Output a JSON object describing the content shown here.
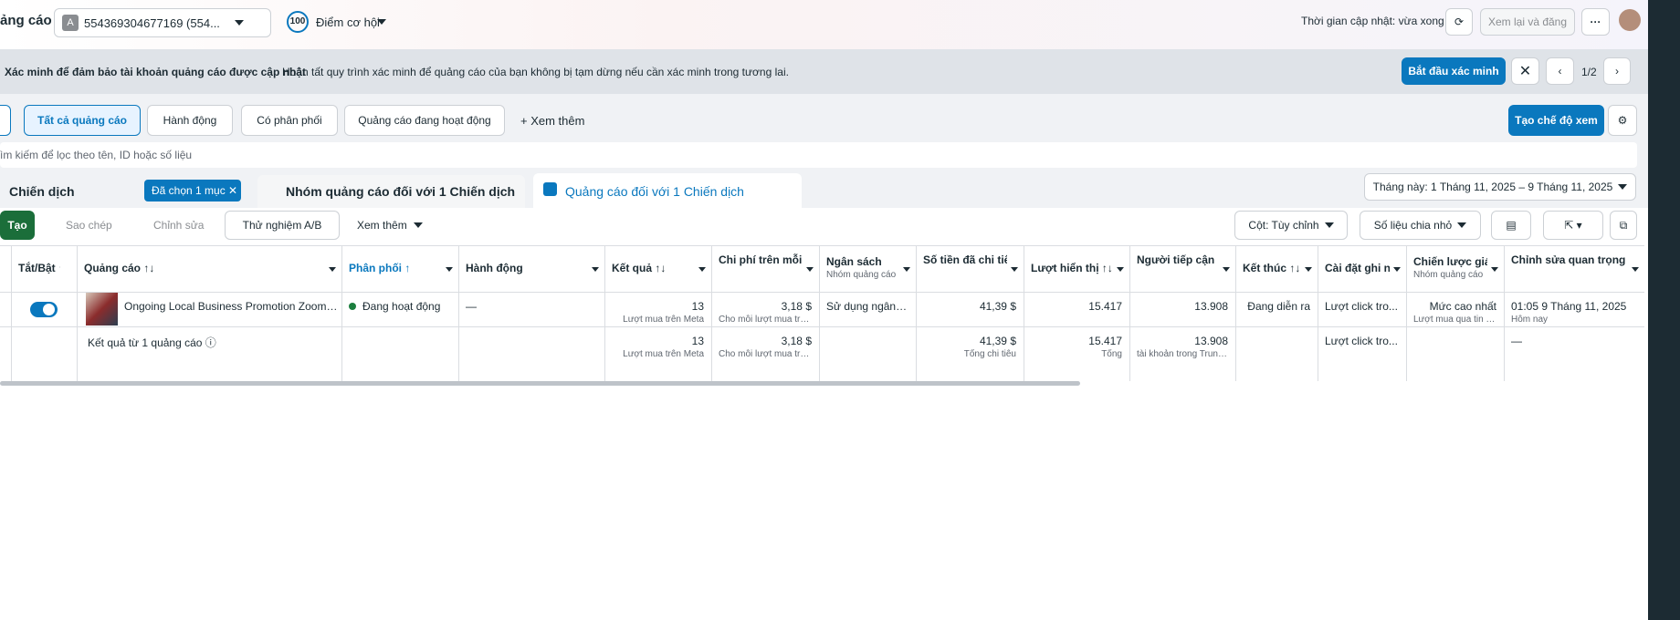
{
  "header": {
    "title": "ảng cáo",
    "account_icon": "A",
    "account": "554369304677169 (554...",
    "score": "100",
    "opportunity": "Điểm cơ hội",
    "updated": "Thời gian cập nhật: vừa xong",
    "review": "Xem lại và đăng",
    "more": "···"
  },
  "banner": {
    "title": "Xác minh để đảm bảo tài khoản quảng cáo được cập nhật",
    "text": "Hoàn tất quy trình xác minh để quảng cáo của bạn không bị tạm dừng nếu cần xác minh trong tương lai.",
    "button": "Bắt đầu xác minh",
    "pager": "1/2"
  },
  "toolbar": {
    "filters": [
      "Tất cả quảng cáo",
      "Hành động",
      "Có phân phối",
      "Quảng cáo đang hoạt động"
    ],
    "more": "Xem thêm",
    "create_view": "Tạo chế độ xem"
  },
  "search": {
    "placeholder": "ìm kiếm để lọc theo tên, ID hoặc số liệu"
  },
  "tabs": {
    "campaign": "Chiến dịch",
    "selected": "Đã chọn 1 mục",
    "adsets": "Nhóm quảng cáo đối với 1 Chiến dịch",
    "ads": "Quảng cáo đối với 1 Chiến dịch",
    "date": "Tháng này: 1 Tháng 11, 2025 – 9 Tháng 11, 2025"
  },
  "actions": {
    "create": "Tạo",
    "copy": "Sao chép",
    "edit": "Chỉnh sửa",
    "ab_test": "Thử nghiệm A/B",
    "more": "Xem thêm",
    "columns": "Cột: Tùy chỉnh",
    "breakdown": "Số liệu chia nhỏ"
  },
  "table": {
    "columns": [
      {
        "label": "Tắt/Bật ↑↓"
      },
      {
        "label": "Quảng cáo ↑↓"
      },
      {
        "label": "Phân phối ↑"
      },
      {
        "label": "Hành động"
      },
      {
        "label": "Kết quả ↑↓"
      },
      {
        "label": "Chi phí trên mỗi kết quả ↑↓"
      },
      {
        "label": "Ngân sách",
        "sub": "Nhóm quảng cáo"
      },
      {
        "label": "Số tiền đã chi tiêu ↑↓"
      },
      {
        "label": "Lượt hiển thị ↑↓"
      },
      {
        "label": "Người tiếp cận ↑↓"
      },
      {
        "label": "Kết thúc ↑↓"
      },
      {
        "label": "Cài đặt ghi nhận"
      },
      {
        "label": "Chiến lược giá thầu",
        "sub": "Nhóm quảng cáo"
      },
      {
        "label": "Chỉnh sửa quan trọng gần đây nhất"
      }
    ],
    "rows": [
      [
        null,
        {
          "main": "Ongoing Local Business Promotion Zoom T..."
        },
        {
          "main": "Đang hoạt động"
        },
        {
          "main": "—"
        },
        {
          "main": "13",
          "sub": "Lượt mua trên Meta"
        },
        {
          "main": "3,18 $",
          "sub": "Cho mỗi lượt mua trê..."
        },
        {
          "main": "Sử dụng ngân s..."
        },
        {
          "main": "41,39 $"
        },
        {
          "main": "15.417"
        },
        {
          "main": "13.908"
        },
        {
          "main": "Đang diễn ra"
        },
        {
          "main": "Lượt click tro..."
        },
        {
          "main": "Mức cao nhất",
          "sub": "Lượt mua qua tin n..."
        },
        {
          "main": "01:05 9 Tháng 11, 2025",
          "sub": "Hôm nay"
        }
      ],
      [
        null,
        {
          "main": "Kết quả từ 1 quảng cáo ⓘ"
        },
        null,
        null,
        {
          "main": "13",
          "sub": "Lượt mua trên Meta"
        },
        {
          "main": "3,18 $",
          "sub": "Cho mỗi lượt mua trê..."
        },
        null,
        {
          "main": "41,39 $",
          "sub": "Tổng chi tiêu"
        },
        {
          "main": "15.417",
          "sub": "Tổng"
        },
        {
          "main": "13.908",
          "sub": "tài khoản trong Trung ..."
        },
        null,
        {
          "main": "Lượt click tro..."
        },
        null,
        {
          "main": "—"
        }
      ]
    ]
  }
}
